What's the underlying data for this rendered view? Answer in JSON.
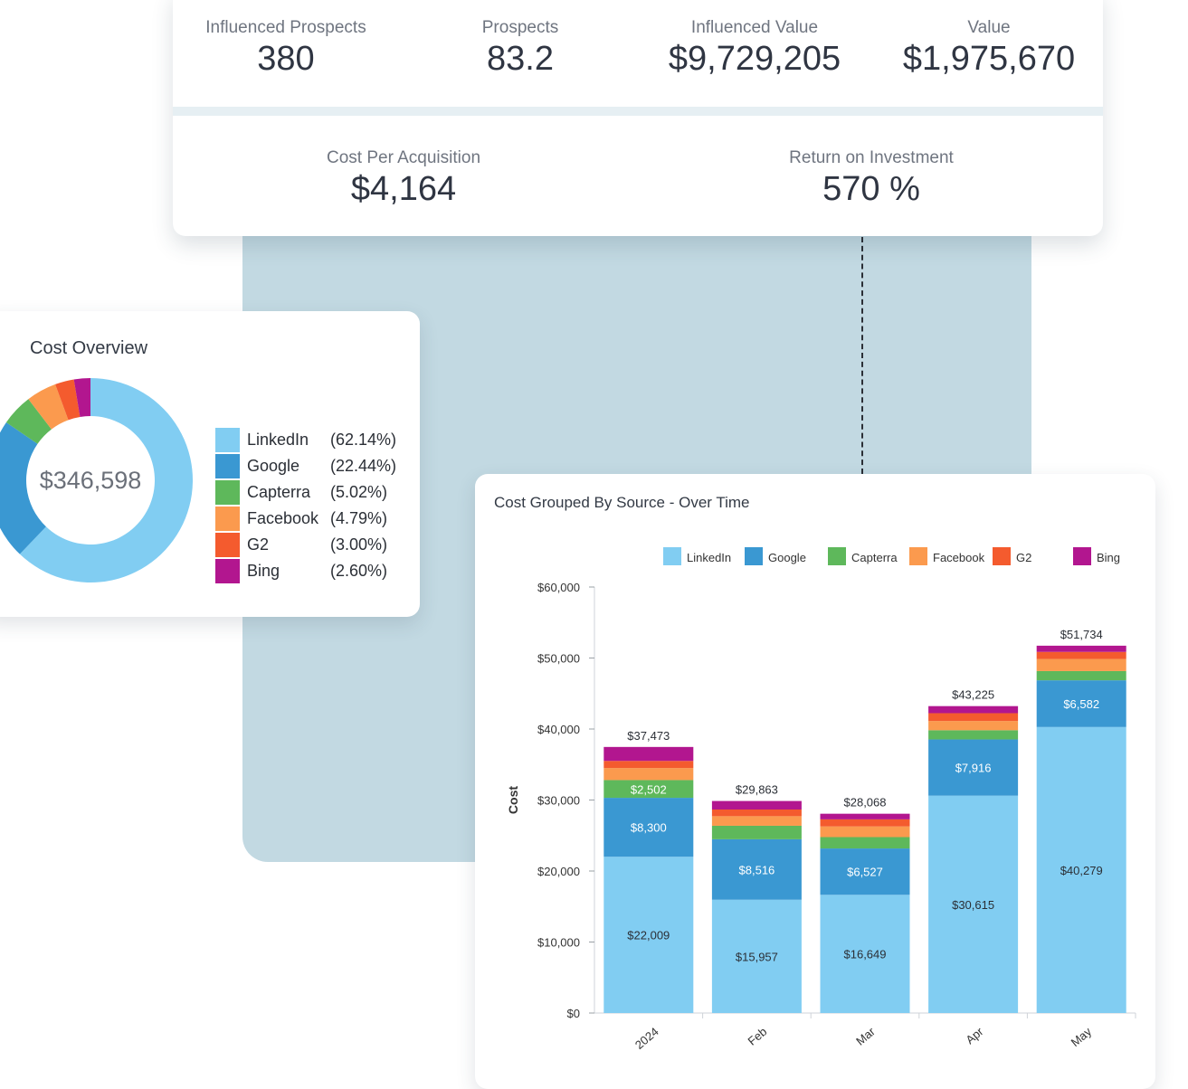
{
  "kpis_top": [
    {
      "label": "Influenced Prospects",
      "value": "380"
    },
    {
      "label": "Prospects",
      "value": "83.2"
    },
    {
      "label": "Influenced Value",
      "value": "$9,729,205"
    },
    {
      "label": "Value",
      "value": "$1,975,670"
    }
  ],
  "kpis_bottom": [
    {
      "label": "Cost Per Acquisition",
      "value": "$4,164"
    },
    {
      "label": "Return on Investment",
      "value": "570 %"
    }
  ],
  "cost_overview": {
    "title": "Cost Overview",
    "total": "$346,598",
    "chart_data": {
      "type": "pie",
      "categories": [
        "LinkedIn",
        "Google",
        "Capterra",
        "Facebook",
        "G2",
        "Bing"
      ],
      "values": [
        62.14,
        22.44,
        5.02,
        4.79,
        3.0,
        2.6
      ],
      "value_labels": [
        "(62.14%)",
        "(22.44%)",
        "(5.02%)",
        "(4.79%)",
        "(3.00%)",
        "(2.60%)"
      ],
      "colors": [
        "#81cdf2",
        "#3a98d2",
        "#5eb85b",
        "#fb9a4e",
        "#f45b2e",
        "#b2168f"
      ]
    }
  },
  "cost_by_source": {
    "title": "Cost Grouped By Source - Over Time",
    "chart_data": {
      "type": "bar",
      "stacked": true,
      "ylabel": "Cost",
      "ylim": [
        0,
        60000
      ],
      "yticks": [
        0,
        10000,
        20000,
        30000,
        40000,
        50000,
        60000
      ],
      "ytick_labels": [
        "$0",
        "$10,000",
        "$20,000",
        "$30,000",
        "$40,000",
        "$50,000",
        "$60,000"
      ],
      "categories": [
        "2024",
        "Feb",
        "Mar",
        "Apr",
        "May"
      ],
      "totals": [
        37473,
        29863,
        28068,
        43225,
        51734
      ],
      "total_labels": [
        "$37,473",
        "$29,863",
        "$28,068",
        "$43,225",
        "$51,734"
      ],
      "series": [
        {
          "name": "LinkedIn",
          "color": "#81cdf2",
          "values": [
            22009,
            15957,
            16649,
            30615,
            40279
          ],
          "labels": [
            "$22,009",
            "$15,957",
            "$16,649",
            "$30,615",
            "$40,279"
          ]
        },
        {
          "name": "Google",
          "color": "#3a98d2",
          "values": [
            8300,
            8516,
            6527,
            7916,
            6582
          ],
          "labels": [
            "$8,300",
            "$8,516",
            "$6,527",
            "$7,916",
            "$6,582"
          ]
        },
        {
          "name": "Capterra",
          "color": "#5eb85b",
          "values": [
            2502,
            1900,
            1600,
            1300,
            1300
          ],
          "labels": [
            "$2,502",
            "",
            "",
            "",
            ""
          ]
        },
        {
          "name": "Facebook",
          "color": "#fb9a4e",
          "values": [
            1700,
            1350,
            1500,
            1300,
            1700
          ],
          "labels": [
            "",
            "",
            "",
            "",
            ""
          ]
        },
        {
          "name": "G2",
          "color": "#f45b2e",
          "values": [
            1000,
            940,
            1000,
            1100,
            1000
          ],
          "labels": [
            "",
            "",
            "",
            "",
            ""
          ]
        },
        {
          "name": "Bing",
          "color": "#b2168f",
          "values": [
            1962,
            1200,
            792,
            994,
            873
          ],
          "labels": [
            "",
            "",
            "",
            "",
            ""
          ]
        }
      ]
    }
  }
}
